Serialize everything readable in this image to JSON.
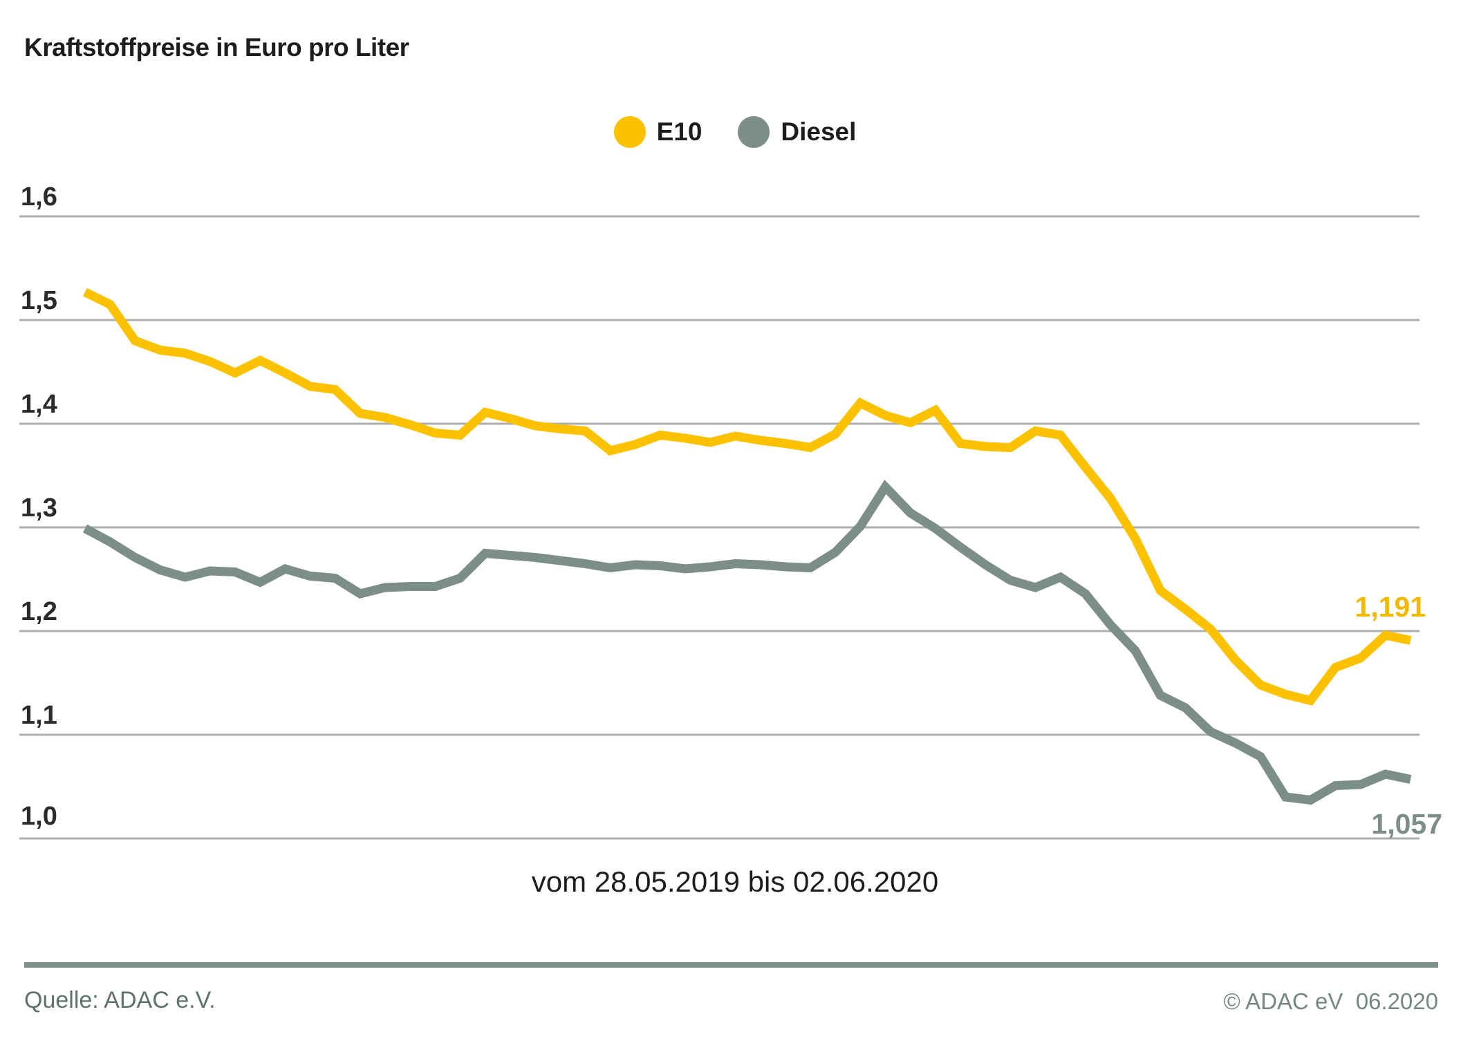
{
  "title": "Kraftstoffpreise in Euro pro Liter",
  "legend": [
    {
      "label": "E10",
      "color": "#fcc200"
    },
    {
      "label": "Diesel",
      "color": "#7c8e8a"
    }
  ],
  "chart_data": {
    "type": "line",
    "title": "Kraftstoffpreise in Euro pro Liter",
    "xlabel": "vom 28.05.2019 bis 02.06.2020",
    "ylabel": "Euro pro Liter",
    "x_range": [
      "28.05.2019",
      "02.06.2020"
    ],
    "x_interval": "weekly",
    "ylim": [
      1.0,
      1.6
    ],
    "grid": true,
    "legend_position": "top-center",
    "y_grid_values": [
      1.0,
      1.1,
      1.2,
      1.3,
      1.4,
      1.5,
      1.6
    ],
    "y_tick_labels_top_to_bottom": [
      "1,6",
      "1,5",
      "1,4",
      "1,3",
      "1,2",
      "1,1",
      "1,0"
    ],
    "series": [
      {
        "name": "E10",
        "color": "#fcc200",
        "end_label": "1,191",
        "end_value": 1.191,
        "values": [
          1.527,
          1.515,
          1.48,
          1.471,
          1.468,
          1.46,
          1.449,
          1.461,
          1.449,
          1.436,
          1.433,
          1.41,
          1.406,
          1.399,
          1.391,
          1.389,
          1.411,
          1.405,
          1.398,
          1.395,
          1.393,
          1.374,
          1.38,
          1.389,
          1.386,
          1.382,
          1.388,
          1.384,
          1.381,
          1.377,
          1.39,
          1.42,
          1.408,
          1.401,
          1.413,
          1.381,
          1.378,
          1.377,
          1.393,
          1.389,
          1.358,
          1.328,
          1.289,
          1.239,
          1.221,
          1.202,
          1.172,
          1.148,
          1.139,
          1.133,
          1.165,
          1.174,
          1.196,
          1.191
        ]
      },
      {
        "name": "Diesel",
        "color": "#7c8e8a",
        "end_label": "1,057",
        "end_value": 1.057,
        "values": [
          1.299,
          1.286,
          1.271,
          1.259,
          1.252,
          1.258,
          1.257,
          1.247,
          1.26,
          1.253,
          1.251,
          1.236,
          1.242,
          1.243,
          1.243,
          1.251,
          1.275,
          1.273,
          1.271,
          1.268,
          1.265,
          1.261,
          1.264,
          1.263,
          1.26,
          1.262,
          1.265,
          1.264,
          1.262,
          1.261,
          1.276,
          1.301,
          1.339,
          1.314,
          1.299,
          1.281,
          1.264,
          1.249,
          1.242,
          1.252,
          1.236,
          1.206,
          1.181,
          1.138,
          1.126,
          1.103,
          1.092,
          1.079,
          1.04,
          1.037,
          1.051,
          1.052,
          1.062,
          1.057
        ]
      }
    ],
    "grid_color": "#adadad"
  },
  "caption": "vom 28.05.2019 bis 02.06.2020",
  "footer": {
    "source": "Quelle: ADAC e.V.",
    "copyright": "© ADAC eV  06.2020"
  }
}
